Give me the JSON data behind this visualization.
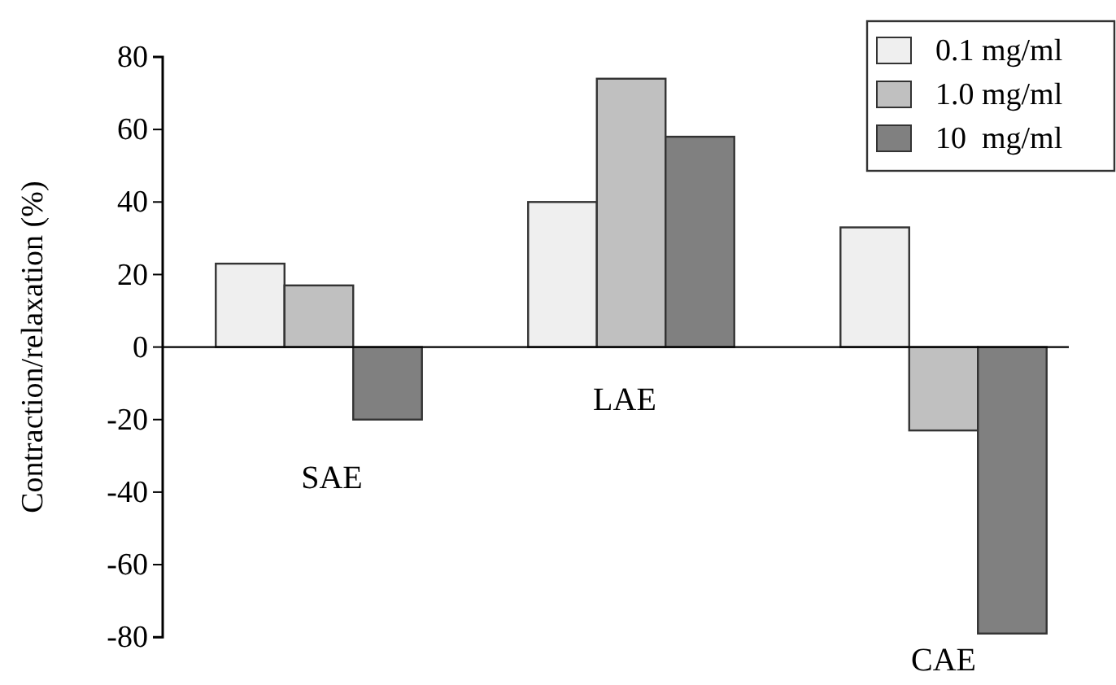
{
  "chart_data": {
    "type": "bar",
    "ylabel": "Contraction/relaxation (%)",
    "categories": [
      "SAE",
      "LAE",
      "CAE"
    ],
    "series": [
      {
        "name": "0.1 mg/ml",
        "color": "#efefef",
        "values": [
          23,
          40,
          33
        ]
      },
      {
        "name": "1.0 mg/ml",
        "color": "#c0c0c0",
        "values": [
          17,
          74,
          -23
        ]
      },
      {
        "name": "10  mg/ml",
        "color": "#808080",
        "values": [
          -20,
          58,
          -79
        ]
      }
    ],
    "ylim": [
      -80,
      80
    ],
    "yticks": [
      -80,
      -60,
      -40,
      -20,
      0,
      20,
      40,
      60,
      80
    ],
    "legend": "top right"
  }
}
